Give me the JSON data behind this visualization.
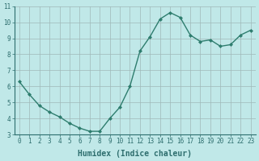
{
  "x": [
    0,
    1,
    2,
    3,
    4,
    5,
    6,
    7,
    8,
    9,
    10,
    11,
    12,
    13,
    14,
    15,
    16,
    17,
    18,
    19,
    20,
    21,
    22,
    23
  ],
  "y": [
    6.3,
    5.5,
    4.8,
    4.4,
    4.1,
    3.7,
    3.4,
    3.2,
    3.2,
    4.0,
    4.7,
    6.0,
    8.2,
    9.1,
    10.2,
    10.6,
    10.3,
    9.2,
    8.8,
    8.9,
    8.5,
    8.6,
    9.2,
    9.5
  ],
  "line_color": "#2e7d6e",
  "marker": "D",
  "marker_size": 2.0,
  "bg_color": "#c0e8e8",
  "grid_color": "#a0b8b8",
  "xlabel": "Humidex (Indice chaleur)",
  "xlim": [
    -0.5,
    23.5
  ],
  "ylim": [
    3,
    11
  ],
  "yticks": [
    3,
    4,
    5,
    6,
    7,
    8,
    9,
    10,
    11
  ],
  "xticks": [
    0,
    1,
    2,
    3,
    4,
    5,
    6,
    7,
    8,
    9,
    10,
    11,
    12,
    13,
    14,
    15,
    16,
    17,
    18,
    19,
    20,
    21,
    22,
    23
  ],
  "tick_label_fontsize": 5.5,
  "xlabel_fontsize": 7.0,
  "line_width": 1.0
}
